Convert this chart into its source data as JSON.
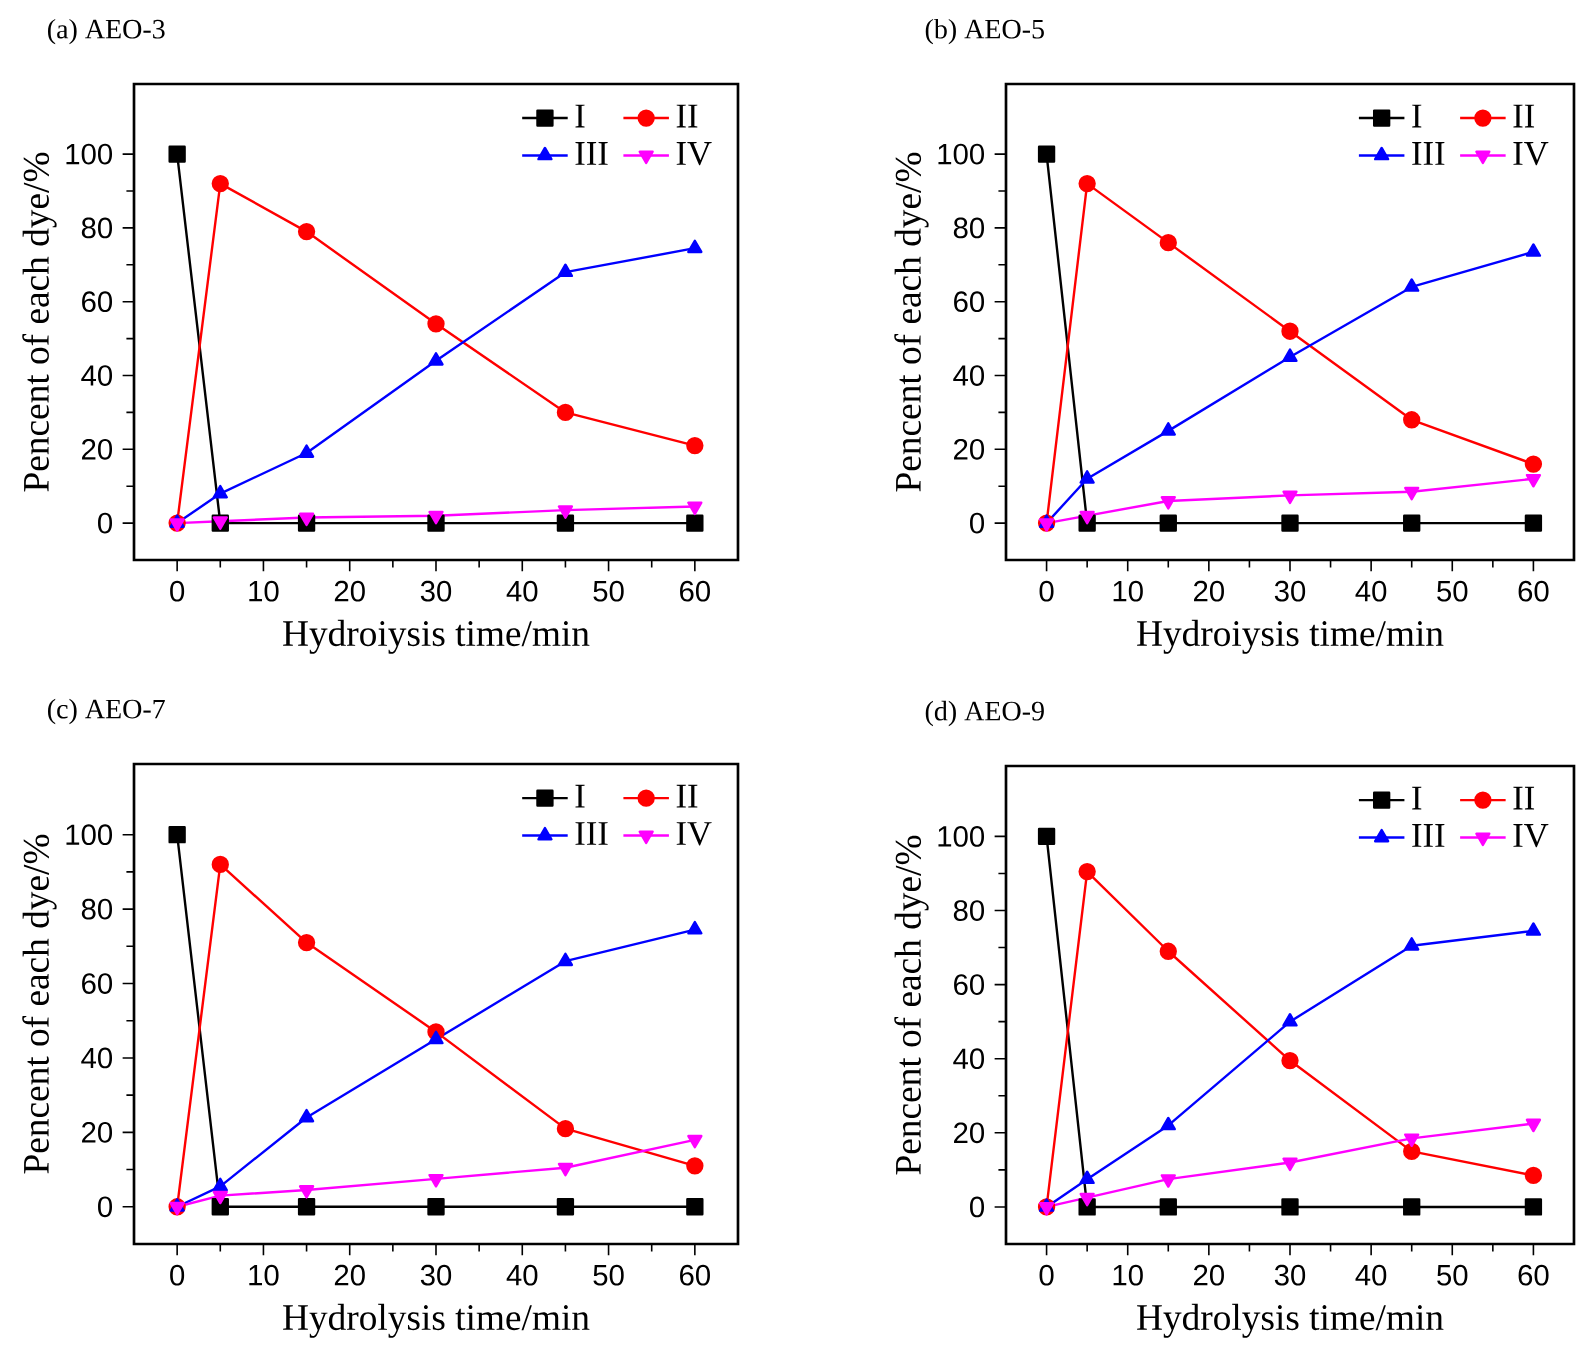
{
  "chart_data": [
    {
      "type": "line",
      "title": "(a) AEO-3",
      "xlabel": "Hydroiysis time/min",
      "ylabel": "Pencent of each dye/%",
      "x": [
        0,
        5,
        15,
        30,
        45,
        60
      ],
      "xlim": [
        -5,
        65
      ],
      "ylim": [
        -10,
        119
      ],
      "xticks": [
        0,
        10,
        20,
        30,
        40,
        50,
        60
      ],
      "yticks": [
        0,
        20,
        40,
        60,
        80,
        100
      ],
      "legend": "top right",
      "line_style": "solid",
      "series": [
        {
          "name": "I",
          "color": "#000000",
          "marker": "square",
          "values": [
            100,
            0,
            0,
            0,
            0,
            0
          ]
        },
        {
          "name": "II",
          "color": "#ff0000",
          "marker": "circle",
          "values": [
            0,
            92,
            79,
            54,
            30,
            21
          ]
        },
        {
          "name": "III",
          "color": "#0000ff",
          "marker": "triangle",
          "values": [
            0,
            8,
            19,
            44,
            68,
            74.5
          ]
        },
        {
          "name": "IV",
          "color": "#ff00ff",
          "marker": "triangle-down",
          "values": [
            0,
            0.5,
            1.5,
            2,
            3.5,
            4.5
          ]
        }
      ]
    },
    {
      "type": "line",
      "title": "(b) AEO-5",
      "xlabel": "Hydroiysis time/min",
      "ylabel": "Pencent of each dye/%",
      "x": [
        0,
        5,
        15,
        30,
        45,
        60
      ],
      "xlim": [
        -5,
        65
      ],
      "ylim": [
        -10,
        119
      ],
      "xticks": [
        0,
        10,
        20,
        30,
        40,
        50,
        60
      ],
      "yticks": [
        0,
        20,
        40,
        60,
        80,
        100
      ],
      "legend": "top right",
      "line_style": "solid",
      "series": [
        {
          "name": "I",
          "color": "#000000",
          "marker": "square",
          "values": [
            100,
            0,
            0,
            0,
            0,
            0
          ]
        },
        {
          "name": "II",
          "color": "#ff0000",
          "marker": "circle",
          "values": [
            0,
            92,
            76,
            52,
            28,
            16
          ]
        },
        {
          "name": "III",
          "color": "#0000ff",
          "marker": "triangle",
          "values": [
            0,
            12,
            25,
            45,
            64,
            73.5
          ]
        },
        {
          "name": "IV",
          "color": "#ff00ff",
          "marker": "triangle-down",
          "values": [
            0,
            2,
            6,
            7.5,
            8.5,
            12
          ]
        }
      ]
    },
    {
      "type": "line",
      "title": "(c) AEO-7",
      "xlabel": "Hydrolysis time/min",
      "ylabel": "Pencent of each dye/%",
      "x": [
        0,
        5,
        15,
        30,
        45,
        60
      ],
      "xlim": [
        -5,
        65
      ],
      "ylim": [
        -10,
        119
      ],
      "xticks": [
        0,
        10,
        20,
        30,
        40,
        50,
        60
      ],
      "yticks": [
        0,
        20,
        40,
        60,
        80,
        100
      ],
      "legend": "top right",
      "line_style": "solid",
      "series": [
        {
          "name": "I",
          "color": "#000000",
          "marker": "square",
          "values": [
            100,
            0,
            0,
            0,
            0,
            0
          ]
        },
        {
          "name": "II",
          "color": "#ff0000",
          "marker": "circle",
          "values": [
            0,
            92,
            71,
            47,
            21,
            11
          ]
        },
        {
          "name": "III",
          "color": "#0000ff",
          "marker": "triangle",
          "values": [
            0,
            5.5,
            24,
            45,
            66,
            74.5
          ]
        },
        {
          "name": "IV",
          "color": "#ff00ff",
          "marker": "triangle-down",
          "values": [
            0,
            3,
            4.5,
            7.5,
            10.5,
            18
          ]
        }
      ]
    },
    {
      "type": "line",
      "title": "(d) AEO-9",
      "xlabel": "Hydrolysis time/min",
      "ylabel": "Pencent of each dye/%",
      "x": [
        0,
        5,
        15,
        30,
        45,
        60
      ],
      "xlim": [
        -5,
        65
      ],
      "ylim": [
        -10,
        119
      ],
      "xticks": [
        0,
        10,
        20,
        30,
        40,
        50,
        60
      ],
      "yticks": [
        0,
        20,
        40,
        60,
        80,
        100
      ],
      "legend": "top right",
      "line_style": "solid",
      "series": [
        {
          "name": "I",
          "color": "#000000",
          "marker": "square",
          "values": [
            100,
            0,
            0,
            0,
            0,
            0
          ]
        },
        {
          "name": "II",
          "color": "#ff0000",
          "marker": "circle",
          "values": [
            0,
            90.5,
            69,
            39.5,
            15,
            8.5
          ]
        },
        {
          "name": "III",
          "color": "#0000ff",
          "marker": "triangle",
          "values": [
            0,
            7.5,
            22,
            50,
            70.5,
            74.5
          ]
        },
        {
          "name": "IV",
          "color": "#ff00ff",
          "marker": "triangle-down",
          "values": [
            0,
            2.5,
            7.5,
            12,
            18.5,
            22.5
          ]
        }
      ]
    }
  ]
}
